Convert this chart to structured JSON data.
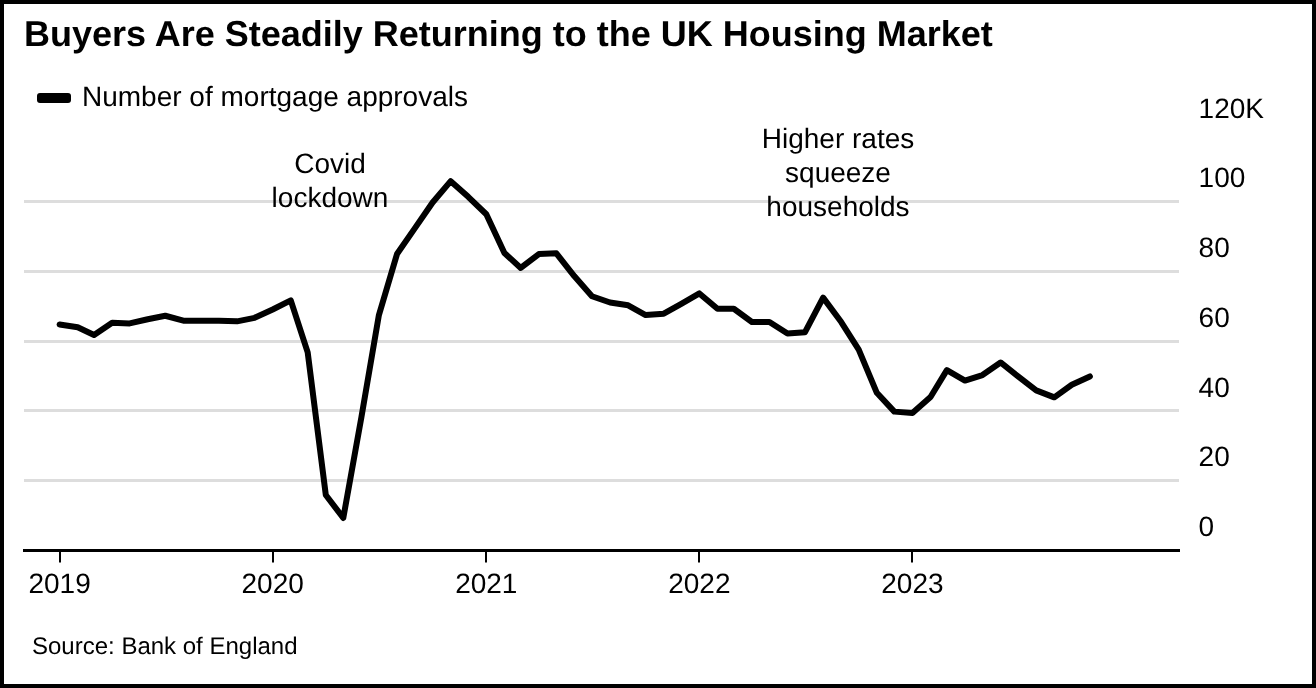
{
  "chart_data": {
    "type": "line",
    "title": "Buyers Are Steadily Returning to the UK Housing Market",
    "x": [
      "2019-01",
      "2019-02",
      "2019-03",
      "2019-04",
      "2019-05",
      "2019-06",
      "2019-07",
      "2019-08",
      "2019-09",
      "2019-10",
      "2019-11",
      "2019-12",
      "2020-01",
      "2020-02",
      "2020-03",
      "2020-04",
      "2020-05",
      "2020-06",
      "2020-07",
      "2020-08",
      "2020-09",
      "2020-10",
      "2020-11",
      "2020-12",
      "2021-01",
      "2021-02",
      "2021-03",
      "2021-04",
      "2021-05",
      "2021-06",
      "2021-07",
      "2021-08",
      "2021-09",
      "2021-10",
      "2021-11",
      "2021-12",
      "2022-01",
      "2022-02",
      "2022-03",
      "2022-04",
      "2022-05",
      "2022-06",
      "2022-07",
      "2022-08",
      "2022-09",
      "2022-10",
      "2022-11",
      "2022-12",
      "2023-01",
      "2023-02",
      "2023-03",
      "2023-04",
      "2023-05",
      "2023-06",
      "2023-07",
      "2023-08",
      "2023-09",
      "2023-10",
      "2023-11"
    ],
    "series": [
      {
        "name": "Number of mortgage approvals",
        "color": "#000000",
        "values": [
          64.8,
          64,
          61.8,
          65.3,
          65.1,
          66.3,
          67.3,
          65.9,
          65.9,
          65.9,
          65.7,
          66.7,
          69.1,
          71.7,
          56.8,
          15.9,
          9.3,
          38.2,
          67.5,
          85,
          92.5,
          99.8,
          105.9,
          101.4,
          96.4,
          85.3,
          81,
          85,
          85.2,
          78.6,
          72.9,
          71.1,
          70.3,
          67.5,
          67.9,
          70.7,
          73.7,
          69.3,
          69.3,
          65.5,
          65.5,
          62.2,
          62.6,
          72.5,
          65.5,
          57.6,
          45.2,
          39.8,
          39.4,
          44,
          51.7,
          48.7,
          50.3,
          53.9,
          49.9,
          45.9,
          43.9,
          47.5,
          49.9
        ]
      }
    ],
    "xlim": [
      "2018-11",
      "2024-04"
    ],
    "xticks": [
      "2019",
      "2020",
      "2021",
      "2022",
      "2023"
    ],
    "ylim": [
      0,
      120
    ],
    "yticks": [
      0,
      20,
      40,
      60,
      80,
      100,
      {
        "value": 120,
        "label": "120K"
      }
    ],
    "grid": "y",
    "legend": "top left",
    "marker": "none",
    "line_style": "solid",
    "annotations": [
      "Covid\nlockdown",
      "Higher rates\nsqueeze\nhouseholds",
      "Source: Bank of England"
    ]
  }
}
